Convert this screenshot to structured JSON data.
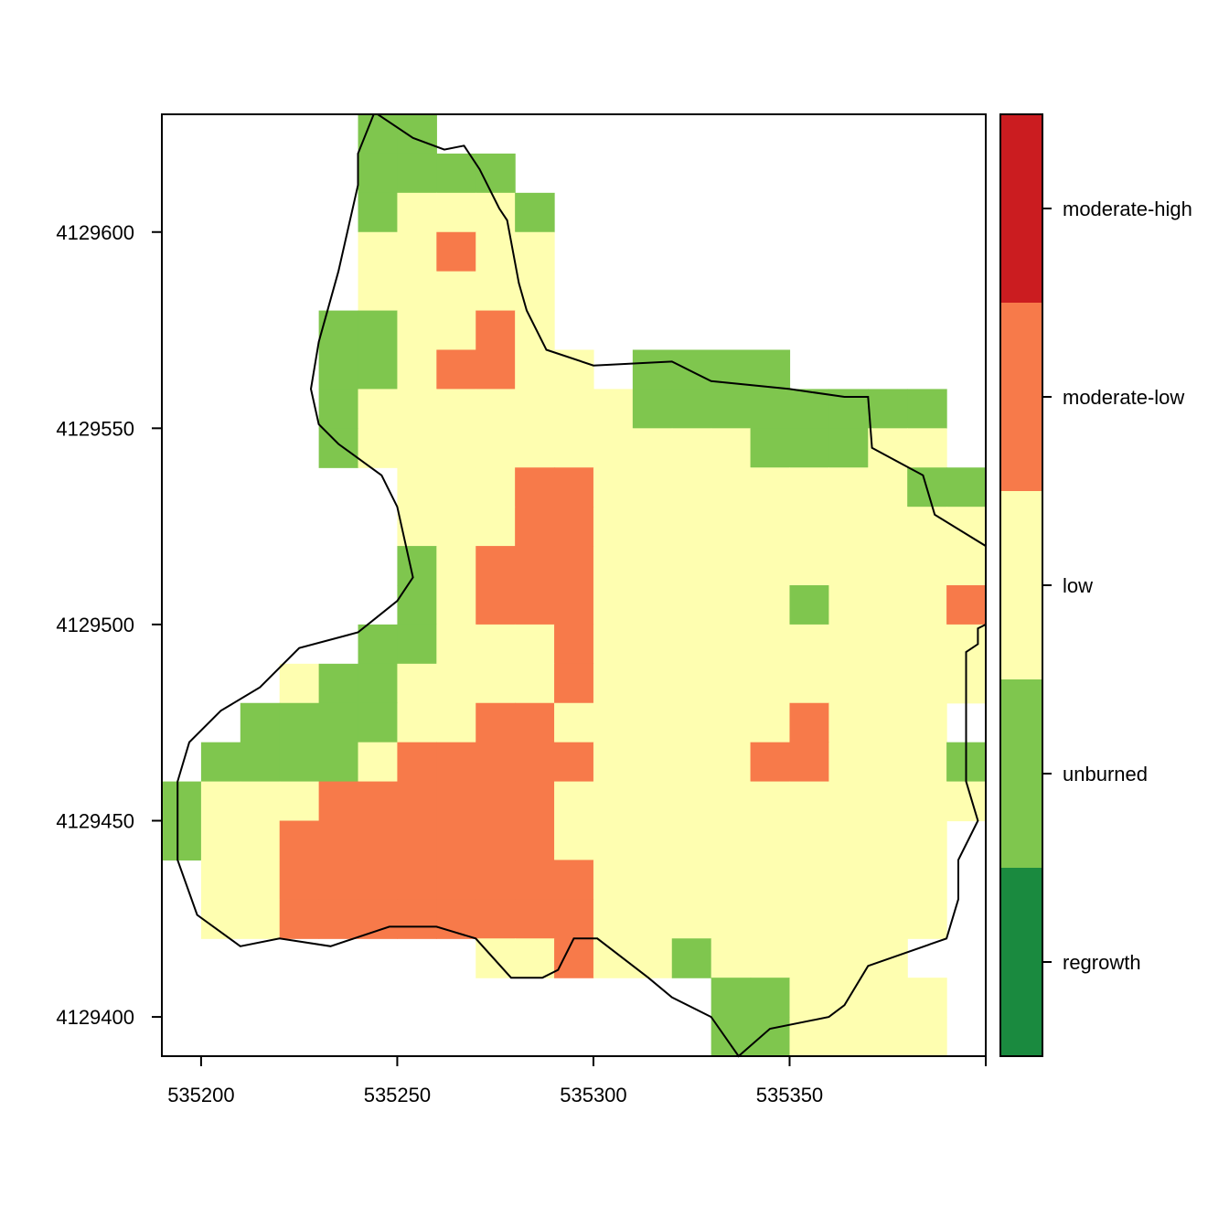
{
  "chart_data": {
    "type": "heatmap",
    "title": "",
    "xlabel": "",
    "ylabel": "",
    "xlim": [
      535190,
      535400
    ],
    "ylim": [
      4129390,
      4129630
    ],
    "x_ticks": [
      535200,
      535250,
      535300,
      535350
    ],
    "x_tick_labels": [
      "535200",
      "535250",
      "535300",
      "535350"
    ],
    "y_ticks": [
      4129400,
      4129450,
      4129500,
      4129550,
      4129600
    ],
    "y_tick_labels": [
      "4129400",
      "4129450",
      "4129500",
      "4129550",
      "4129600"
    ],
    "grid": false,
    "legend_position": "right",
    "raster": {
      "x0": 535190,
      "y_top": 4129630,
      "cell_size": 10,
      "codes": {
        ".": null,
        "G": "unburned",
        "Y": "low",
        "O": "moderate-low"
      },
      "rows": [
        ".....GG..............",
        ".....GGGG............",
        ".....GYYYG...........",
        ".....YYOYY...........",
        ".....YYYYY...........",
        "....GGYYOY...........",
        "....GGYOOYY.GGGG.....",
        "....GYYYYYYYGGGGGGGG.",
        "....GYYYYYYYYYYGGGYY.",
        "......YYYOOYYYYYYYYGG",
        "......YYYOOYYYYYYYYYY",
        "......GYOOOYYYYYYYYYY",
        "......GYOOOYYYYYGYYYO",
        ".....GGYYYOYYYYYYYYYY",
        "...YGGYYYYOYYYYYYYYYY",
        "..GGGGYYOOYYYYYYOYYY.",
        ".GGGGYOOOOOYYYYOOYYYG",
        "GYYYOOOOOOYYYYYYYYYYY",
        "GYYOOOOOOOYYYYYYYYYY.",
        ".YYOOOOOOOOYYYYYYYYY.",
        ".YYOOOOOOOOYYYYYYYYY.",
        "........YYOYYGYYYYY..",
        "..............GGYYYY.",
        "..............GGYYYY.",
        "..............G......"
      ]
    },
    "boundary": [
      [
        535245,
        4129630
      ],
      [
        535254,
        4129624
      ],
      [
        535262,
        4129621
      ],
      [
        535267,
        4129622
      ],
      [
        535271,
        4129616
      ],
      [
        535276,
        4129606
      ],
      [
        535278,
        4129603
      ],
      [
        535281,
        4129587
      ],
      [
        535283,
        4129580
      ],
      [
        535288,
        4129570
      ],
      [
        535300,
        4129566
      ],
      [
        535320,
        4129567
      ],
      [
        535330,
        4129562
      ],
      [
        535350,
        4129560
      ],
      [
        535364,
        4129558
      ],
      [
        535370,
        4129558
      ],
      [
        535371,
        4129545
      ],
      [
        535384,
        4129538
      ],
      [
        535387,
        4129528
      ],
      [
        535400,
        4129520
      ],
      [
        535400,
        4129500
      ],
      [
        535398,
        4129499
      ],
      [
        535398,
        4129495
      ],
      [
        535395,
        4129493
      ],
      [
        535395,
        4129472
      ],
      [
        535395,
        4129460
      ],
      [
        535398,
        4129450
      ],
      [
        535393,
        4129440
      ],
      [
        535393,
        4129430
      ],
      [
        535390,
        4129420
      ],
      [
        535370,
        4129413
      ],
      [
        535364,
        4129403
      ],
      [
        535360,
        4129400
      ],
      [
        535345,
        4129397
      ],
      [
        535337,
        4129390
      ],
      [
        535330,
        4129400
      ],
      [
        535320,
        4129405
      ],
      [
        535314,
        4129410
      ],
      [
        535301,
        4129420
      ],
      [
        535295,
        4129420
      ],
      [
        535291,
        4129412
      ],
      [
        535287,
        4129410
      ],
      [
        535279,
        4129410
      ],
      [
        535270,
        4129420
      ],
      [
        535260,
        4129423
      ],
      [
        535248,
        4129423
      ],
      [
        535233,
        4129418
      ],
      [
        535220,
        4129420
      ],
      [
        535210,
        4129418
      ],
      [
        535199,
        4129426
      ],
      [
        535194,
        4129440
      ],
      [
        535194,
        4129460
      ],
      [
        535197,
        4129470
      ],
      [
        535205,
        4129478
      ],
      [
        535215,
        4129484
      ],
      [
        535225,
        4129494
      ],
      [
        535240,
        4129498
      ],
      [
        535245,
        4129502
      ],
      [
        535250,
        4129506
      ],
      [
        535254,
        4129512
      ],
      [
        535250,
        4129530
      ],
      [
        535246,
        4129538
      ],
      [
        535235,
        4129546
      ],
      [
        535230,
        4129551
      ],
      [
        535228,
        4129560
      ],
      [
        535230,
        4129572
      ],
      [
        535235,
        4129590
      ],
      [
        535240,
        4129612
      ],
      [
        535240,
        4129620
      ],
      [
        535244,
        4129630
      ]
    ],
    "legend": {
      "classes": [
        {
          "label": "regrowth",
          "color": "#1a8a3f"
        },
        {
          "label": "unburned",
          "color": "#7fc64e"
        },
        {
          "label": "low",
          "color": "#fefeb0"
        },
        {
          "label": "moderate-low",
          "color": "#f77a4a"
        },
        {
          "label": "moderate-high",
          "color": "#cb1c20"
        }
      ],
      "breaks": [
        0.5,
        1.5,
        2.5,
        3.5,
        4.5,
        5.5
      ]
    }
  }
}
